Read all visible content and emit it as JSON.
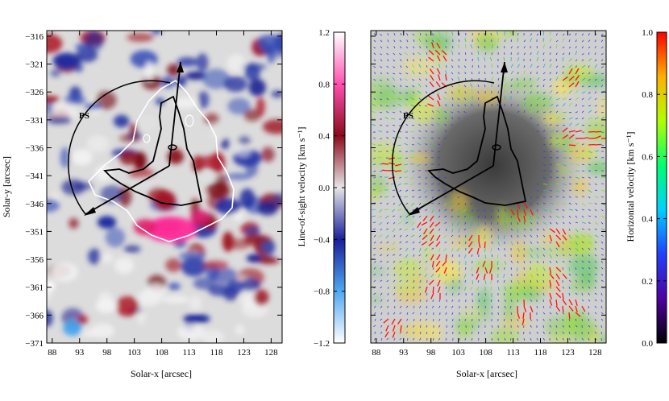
{
  "chart_data": [
    {
      "type": "heatmap",
      "panel": "left",
      "title": "",
      "xlabel": "Solar-x  [arcsec]",
      "ylabel": "Solar-y  [arcsec]",
      "xlim": [
        87,
        130
      ],
      "ylim": [
        -371,
        -315
      ],
      "x_ticks": [
        "88",
        "93",
        "98",
        "103",
        "108",
        "113",
        "118",
        "123",
        "128"
      ],
      "y_ticks": [
        "-316",
        "-321",
        "-326",
        "-331",
        "-336",
        "-341",
        "-346",
        "-351",
        "-356",
        "-361",
        "-366",
        "-371"
      ],
      "annotation": "PS",
      "colorbar": {
        "label": "Line-of-sight velocity  [km s⁻¹]",
        "range": [
          -1.2,
          1.2
        ],
        "ticks": [
          "1.2",
          "0.8",
          "0.4",
          "0.0",
          "-0.4",
          "-0.8",
          "-1.2"
        ],
        "colors": [
          "#ffffff",
          "#ff4fb0",
          "#8a0a1c",
          "#e6e6e6",
          "#1a1f9a",
          "#4fa8f0",
          "#ffffff"
        ]
      }
    },
    {
      "type": "heatmap",
      "panel": "right",
      "title": "",
      "xlabel": "Solar-x  [arcsec]",
      "ylabel": "",
      "xlim": [
        87,
        130
      ],
      "ylim": [
        -371,
        -315
      ],
      "x_ticks": [
        "88",
        "93",
        "98",
        "103",
        "108",
        "113",
        "118",
        "123",
        "128"
      ],
      "annotation": "PS",
      "colorbar": {
        "label": "Horizontal velocity  [km s⁻¹]",
        "range": [
          0.0,
          1.0
        ],
        "ticks": [
          "1.0",
          "0.8",
          "0.6",
          "0.4",
          "0.2",
          "0.0"
        ],
        "colors": [
          "#ff0000",
          "#ffb000",
          "#b0ff00",
          "#00ff70",
          "#00d0ff",
          "#2040ff",
          "#5000a0",
          "#000000"
        ]
      }
    }
  ]
}
